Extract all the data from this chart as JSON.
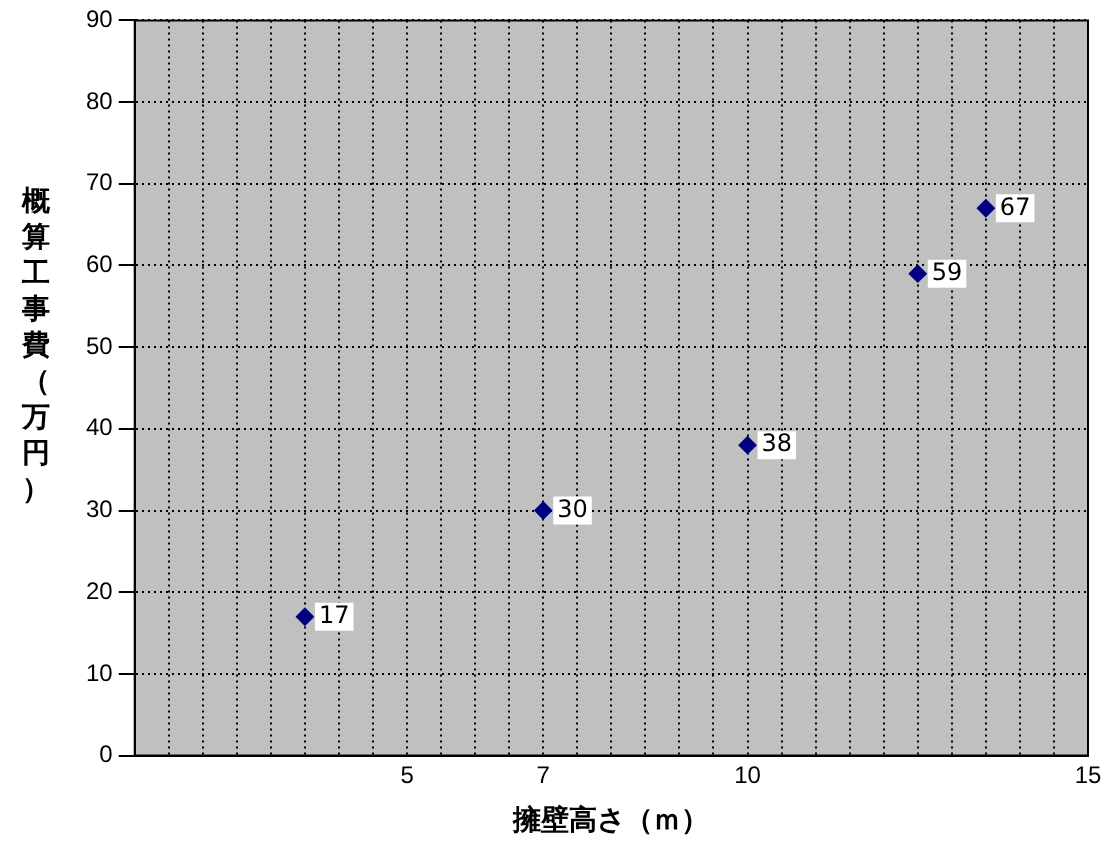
{
  "chart_data": {
    "type": "scatter",
    "xlabel": "擁壁高さ（ｍ）",
    "ylabel": "概算工事費（万円）",
    "x": [
      3.5,
      7,
      10,
      12.5,
      13.5
    ],
    "series": [
      {
        "color": "#000080",
        "values": [
          17,
          30,
          38,
          59,
          67
        ]
      }
    ],
    "xlim": [
      1,
      15
    ],
    "xticks": [
      {
        "value": 1,
        "label": null
      },
      {
        "value": 1.5,
        "label": null
      },
      {
        "value": 2,
        "label": null
      },
      {
        "value": 2.5,
        "label": null
      },
      {
        "value": 3,
        "label": null
      },
      {
        "value": 3.5,
        "label": null
      },
      {
        "value": 4,
        "label": null
      },
      {
        "value": 4.5,
        "label": null
      },
      5,
      {
        "value": 5.5,
        "label": null
      },
      {
        "value": 6,
        "label": null
      },
      {
        "value": 6.5,
        "label": null
      },
      7,
      {
        "value": 7.5,
        "label": null
      },
      {
        "value": 8,
        "label": null
      },
      {
        "value": 8.5,
        "label": null
      },
      {
        "value": 9,
        "label": null
      },
      {
        "value": 9.5,
        "label": null
      },
      10,
      {
        "value": 10.5,
        "label": null
      },
      {
        "value": 11,
        "label": null
      },
      {
        "value": 11.5,
        "label": null
      },
      {
        "value": 12,
        "label": null
      },
      {
        "value": 12.5,
        "label": null
      },
      {
        "value": 13,
        "label": null
      },
      {
        "value": 13.5,
        "label": null
      },
      {
        "value": 14,
        "label": null
      },
      {
        "value": 14.5,
        "label": null
      },
      15
    ],
    "ylim": [
      0,
      90
    ],
    "yticks": [
      0,
      10,
      20,
      30,
      40,
      50,
      60,
      70,
      80,
      90
    ],
    "grid": true,
    "marker": "diamond",
    "data_labels": true,
    "legend": false
  }
}
